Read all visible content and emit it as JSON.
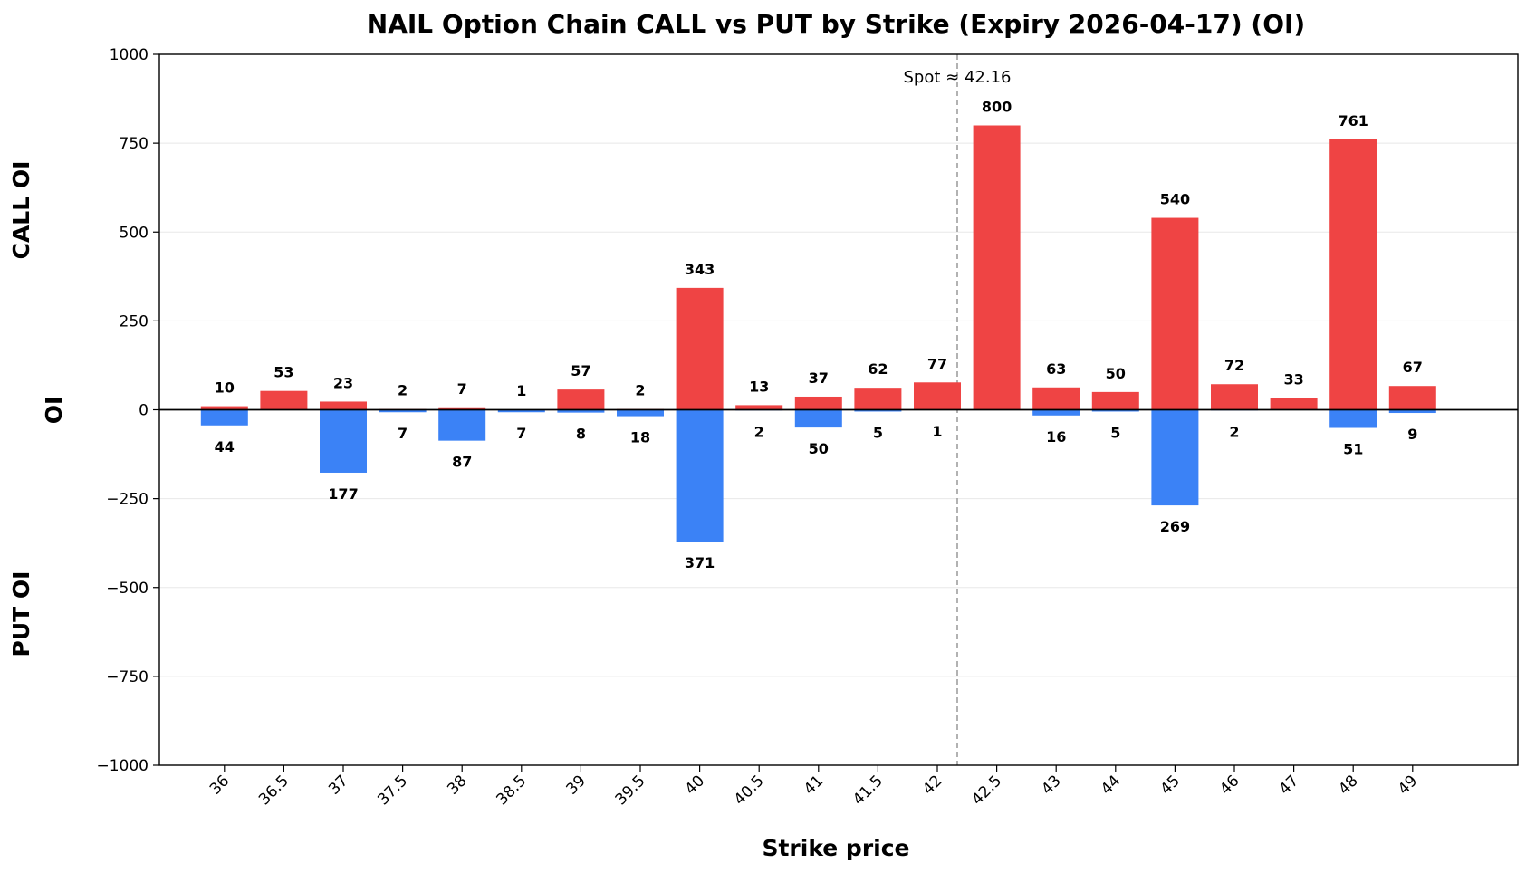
{
  "chart_data": {
    "type": "bar",
    "title": "NAIL Option Chain CALL vs PUT by Strike (Expiry 2026-04-17) (OI)",
    "xlabel": "Strike price",
    "ylabel": "OI",
    "ylabel_top": "CALL OI",
    "ylabel_bottom": "PUT OI",
    "ylim": [
      -1000,
      1000
    ],
    "yticks": [
      1000,
      750,
      500,
      250,
      0,
      -250,
      -500,
      -750,
      -1000
    ],
    "ytick_labels": [
      "1000",
      "750",
      "500",
      "250",
      "0",
      "−250",
      "−500",
      "−750",
      "−1000"
    ],
    "categories": [
      "36",
      "36.5",
      "37",
      "37.5",
      "38",
      "38.5",
      "39",
      "39.5",
      "40",
      "40.5",
      "41",
      "41.5",
      "42",
      "42.5",
      "43",
      "44",
      "45",
      "46",
      "47",
      "48",
      "49"
    ],
    "series": [
      {
        "name": "CALL OI",
        "color": "#ef4444",
        "values": [
          10,
          53,
          23,
          2,
          7,
          1,
          57,
          2,
          343,
          13,
          37,
          62,
          77,
          800,
          63,
          50,
          540,
          72,
          33,
          761,
          67
        ]
      },
      {
        "name": "PUT OI",
        "color": "#3b82f6",
        "values": [
          44,
          0,
          177,
          7,
          87,
          7,
          8,
          18,
          371,
          2,
          50,
          5,
          1,
          0,
          16,
          5,
          269,
          2,
          0,
          51,
          9
        ]
      }
    ],
    "put_value_labels": [
      "44",
      "",
      "177",
      "7",
      "87",
      "7",
      "8",
      "18",
      "371",
      "2",
      "50",
      "5",
      "1",
      "",
      "16",
      "5",
      "269",
      "2",
      "",
      "51",
      "9"
    ],
    "spot": {
      "label": "Spot ≈ 42.16",
      "value": 42.16
    },
    "grid": "horizontal"
  }
}
